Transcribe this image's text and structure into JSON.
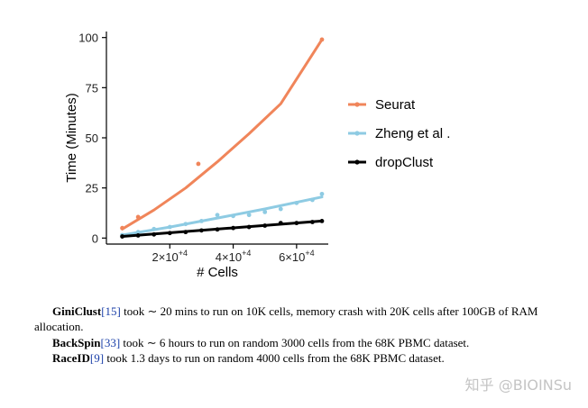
{
  "chart_data": {
    "type": "line",
    "xlabel": "# Cells",
    "ylabel": "Time (Minutes)",
    "xlim": [
      0,
      70000
    ],
    "ylim": [
      -3,
      103
    ],
    "yticks": [
      0,
      25,
      50,
      75,
      100
    ],
    "xticks": [
      {
        "value": 20000,
        "base": "2×10",
        "exp": "+4"
      },
      {
        "value": 40000,
        "base": "4×10",
        "exp": "+4"
      },
      {
        "value": 60000,
        "base": "6×10",
        "exp": "+4"
      }
    ],
    "legend_position": "right",
    "series": [
      {
        "name": "Seurat",
        "color": "#f0855a",
        "points": [
          [
            5000,
            5
          ],
          [
            10000,
            10.5
          ],
          [
            29000,
            37
          ],
          [
            68000,
            99
          ]
        ],
        "fit": [
          [
            5000,
            4.5
          ],
          [
            15000,
            14
          ],
          [
            25000,
            25
          ],
          [
            35000,
            38
          ],
          [
            45000,
            52
          ],
          [
            55000,
            67
          ],
          [
            68000,
            99
          ]
        ]
      },
      {
        "name": "Zheng et al .",
        "color": "#8ecbe3",
        "points": [
          [
            5000,
            1.5
          ],
          [
            10000,
            3
          ],
          [
            15000,
            4.5
          ],
          [
            20000,
            5.5
          ],
          [
            25000,
            7
          ],
          [
            30000,
            8.5
          ],
          [
            35000,
            11.5
          ],
          [
            40000,
            11
          ],
          [
            45000,
            11.5
          ],
          [
            50000,
            13
          ],
          [
            55000,
            14.5
          ],
          [
            60000,
            17.5
          ],
          [
            65000,
            19
          ],
          [
            68000,
            22
          ]
        ],
        "fit": [
          [
            5000,
            1.5
          ],
          [
            20000,
            5.5
          ],
          [
            35000,
            10
          ],
          [
            50000,
            14.5
          ],
          [
            68000,
            20.5
          ]
        ]
      },
      {
        "name": "dropClust",
        "color": "#000000",
        "points": [
          [
            5000,
            0.8
          ],
          [
            10000,
            1.3
          ],
          [
            15000,
            1.8
          ],
          [
            20000,
            2.5
          ],
          [
            25000,
            3
          ],
          [
            30000,
            3.8
          ],
          [
            35000,
            4.3
          ],
          [
            40000,
            5
          ],
          [
            45000,
            5.5
          ],
          [
            50000,
            6.2
          ],
          [
            55000,
            7.5
          ],
          [
            60000,
            7.5
          ],
          [
            65000,
            8
          ],
          [
            68000,
            8.5
          ]
        ],
        "fit": [
          [
            5000,
            0.8
          ],
          [
            68000,
            8.5
          ]
        ]
      }
    ]
  },
  "caption": {
    "line1": {
      "name": "GiniClust",
      "ref": "[15]",
      "text": " took ∼ 20 mins to run on 10K cells, memory crash with 20K cells after 100GB of RAM allocation."
    },
    "line2": {
      "name": "BackSpin",
      "ref": "[33]",
      "text": " took ∼ 6 hours to run on random 3000 cells from the 68K PBMC dataset."
    },
    "line3": {
      "name": "RaceID",
      "ref": "[9]",
      "text": " took 1.3 days to run on random 4000 cells from the 68K PBMC dataset."
    }
  },
  "watermark": "知乎 @BIOINSu"
}
